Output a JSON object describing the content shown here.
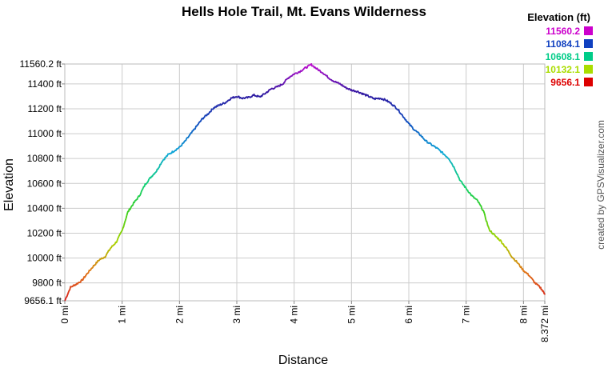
{
  "chart_data": {
    "type": "line",
    "title": "Hells Hole Trail, Mt. Evans Wilderness",
    "xlabel": "Distance",
    "ylabel": "Elevation",
    "credit": "created by GPSVisualizer.com",
    "xlim": [
      0,
      8.372
    ],
    "ylim": [
      9656.1,
      11560.2
    ],
    "x_ticks": [
      {
        "value": 0,
        "label": "0 mi"
      },
      {
        "value": 1,
        "label": "1 mi"
      },
      {
        "value": 2,
        "label": "2 mi"
      },
      {
        "value": 3,
        "label": "3 mi"
      },
      {
        "value": 4,
        "label": "4 mi"
      },
      {
        "value": 5,
        "label": "5 mi"
      },
      {
        "value": 6,
        "label": "6 mi"
      },
      {
        "value": 7,
        "label": "7 mi"
      },
      {
        "value": 8,
        "label": "8 mi"
      },
      {
        "value": 8.372,
        "label": "8.372 mi"
      }
    ],
    "y_ticks": [
      {
        "value": 9656.1,
        "label": "9656.1 ft"
      },
      {
        "value": 9800,
        "label": "9800 ft"
      },
      {
        "value": 10000,
        "label": "10000 ft"
      },
      {
        "value": 10200,
        "label": "10200 ft"
      },
      {
        "value": 10400,
        "label": "10400 ft"
      },
      {
        "value": 10600,
        "label": "10600 ft"
      },
      {
        "value": 10800,
        "label": "10800 ft"
      },
      {
        "value": 11000,
        "label": "11000 ft"
      },
      {
        "value": 11200,
        "label": "11200 ft"
      },
      {
        "value": 11400,
        "label": "11400 ft"
      },
      {
        "value": 11560.2,
        "label": "11560.2 ft"
      }
    ],
    "grid": true,
    "legend": {
      "title": "Elevation (ft)",
      "placement": "top-right",
      "entries": [
        {
          "label": "11560.2",
          "color": "#cc00cc"
        },
        {
          "label": "11084.1",
          "color": "#1040c0"
        },
        {
          "label": "10608.1",
          "color": "#00cc88"
        },
        {
          "label": "10132.1",
          "color": "#aadd00"
        },
        {
          "label": "9656.1",
          "color": "#dd0000"
        }
      ]
    },
    "color_scale": [
      {
        "elevation": 9656.1,
        "color": "#d81b1b"
      },
      {
        "elevation": 9894.1,
        "color": "#e07818"
      },
      {
        "elevation": 10132.1,
        "color": "#a8d400"
      },
      {
        "elevation": 10370.1,
        "color": "#3ccf1c"
      },
      {
        "elevation": 10608.1,
        "color": "#10d07c"
      },
      {
        "elevation": 10846.1,
        "color": "#10a8d8"
      },
      {
        "elevation": 11084.1,
        "color": "#1050c0"
      },
      {
        "elevation": 11322.1,
        "color": "#3018a0"
      },
      {
        "elevation": 11560.2,
        "color": "#c010d0"
      }
    ],
    "series": [
      {
        "x": [
          0,
          0.1,
          0.2,
          0.3,
          0.4,
          0.5,
          0.6,
          0.7,
          0.8,
          0.9,
          1.0,
          1.1,
          1.2,
          1.3,
          1.4,
          1.5,
          1.6,
          1.7,
          1.8,
          1.9,
          2.0,
          2.1,
          2.2,
          2.3,
          2.4,
          2.5,
          2.6,
          2.7,
          2.8,
          2.9,
          3.0,
          3.1,
          3.2,
          3.3,
          3.4,
          3.5,
          3.6,
          3.7,
          3.8,
          3.9,
          4.0,
          4.1,
          4.2,
          4.3,
          4.4,
          4.5,
          4.6,
          4.7,
          4.8,
          4.9,
          5.0,
          5.1,
          5.2,
          5.3,
          5.4,
          5.5,
          5.6,
          5.7,
          5.8,
          5.9,
          6.0,
          6.1,
          6.2,
          6.3,
          6.4,
          6.5,
          6.6,
          6.7,
          6.8,
          6.9,
          7.0,
          7.1,
          7.2,
          7.3,
          7.4,
          7.5,
          7.6,
          7.7,
          7.8,
          7.9,
          8.0,
          8.1,
          8.2,
          8.3,
          8.372
        ],
        "y": [
          9656,
          9765,
          9790,
          9820,
          9880,
          9935,
          9985,
          10010,
          10080,
          10130,
          10220,
          10370,
          10440,
          10500,
          10590,
          10650,
          10700,
          10780,
          10830,
          10860,
          10890,
          10940,
          11000,
          11060,
          11120,
          11160,
          11210,
          11230,
          11250,
          11285,
          11300,
          11285,
          11290,
          11310,
          11295,
          11325,
          11360,
          11375,
          11400,
          11450,
          11480,
          11500,
          11530,
          11555,
          11520,
          11490,
          11450,
          11420,
          11400,
          11370,
          11350,
          11340,
          11320,
          11300,
          11280,
          11285,
          11270,
          11240,
          11200,
          11140,
          11080,
          11030,
          10990,
          10940,
          10910,
          10880,
          10840,
          10800,
          10720,
          10620,
          10560,
          10500,
          10460,
          10380,
          10230,
          10180,
          10140,
          10080,
          10010,
          9960,
          9900,
          9860,
          9800,
          9760,
          9710
        ]
      }
    ]
  }
}
